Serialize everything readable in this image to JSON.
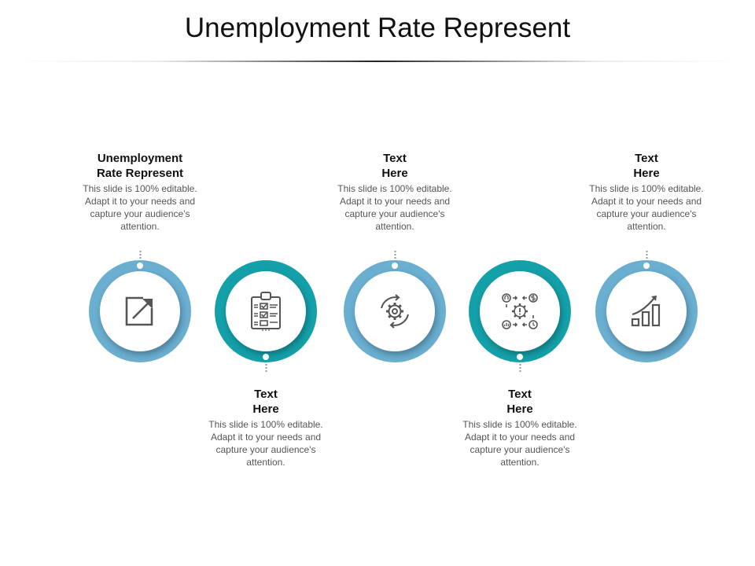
{
  "title": "Unemployment Rate Represent",
  "colors": {
    "light_blue": "#6aaed0",
    "teal": "#14a0a9",
    "icon_gray": "#555555"
  },
  "steps": [
    {
      "heading_line1": "Unemployment",
      "heading_line2": "Rate Represent",
      "body": "This slide is 100% editable. Adapt it to your needs and capture your audience's attention.",
      "icon": "external-link-icon",
      "ring_color": "light_blue",
      "text_position": "top"
    },
    {
      "heading_line1": "Text",
      "heading_line2": "Here",
      "body": "This slide is 100% editable. Adapt it to your needs and capture your audience's attention.",
      "icon": "clipboard-checklist-icon",
      "ring_color": "teal",
      "text_position": "bottom"
    },
    {
      "heading_line1": "Text",
      "heading_line2": "Here",
      "body": "This slide is 100% editable. Adapt it to your needs and capture your audience's attention.",
      "icon": "gear-cycle-icon",
      "ring_color": "light_blue",
      "text_position": "top"
    },
    {
      "heading_line1": "Text",
      "heading_line2": "Here",
      "body": "This slide is 100% editable. Adapt it to your needs and capture your audience's attention.",
      "icon": "management-gear-icon",
      "ring_color": "teal",
      "text_position": "bottom"
    },
    {
      "heading_line1": "Text",
      "heading_line2": "Here",
      "body": "This slide is 100% editable. Adapt it to your needs and capture your audience's attention.",
      "icon": "growth-chart-icon",
      "ring_color": "light_blue",
      "text_position": "top"
    }
  ]
}
